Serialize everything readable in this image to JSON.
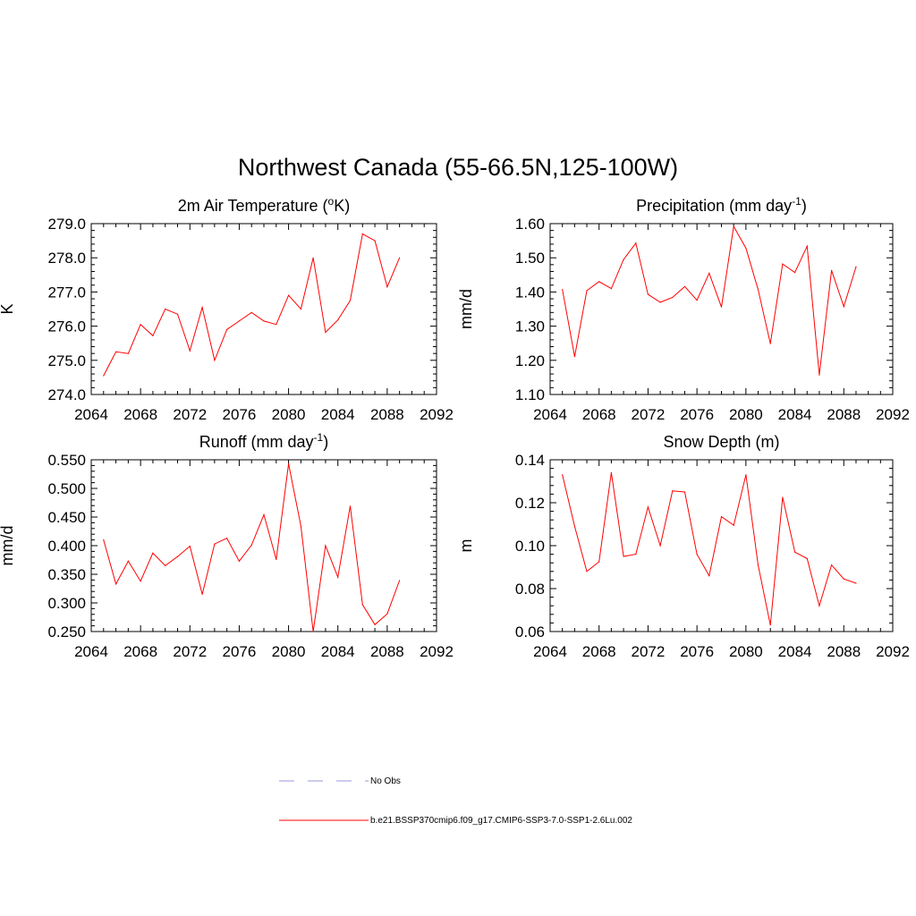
{
  "title": "Northwest Canada (55-66.5N,125-100W)",
  "colors": {
    "model": "#ff0000",
    "obs": "#9999dd",
    "axis": "#000000"
  },
  "legend": {
    "items": [
      {
        "label": "No Obs",
        "style": "dashed",
        "color": "#9999dd"
      },
      {
        "label": "b.e21.BSSP370cmip6.f09_g17.CMIP6-SSP3-7.0-SSP1-2.6Lu.002",
        "style": "solid",
        "color": "#ff0000"
      }
    ]
  },
  "chart_data": [
    {
      "type": "line",
      "title_main": "2m Air Temperature (",
      "title_sup": "o",
      "title_tail": "K)",
      "ylabel": "K",
      "xlim": [
        2064,
        2092
      ],
      "ylim": [
        274.0,
        279.0
      ],
      "xticks": [
        2064,
        2068,
        2072,
        2076,
        2080,
        2084,
        2088,
        2092
      ],
      "yticks": [
        "274.0",
        "275.0",
        "276.0",
        "277.0",
        "278.0",
        "279.0"
      ],
      "series": [
        {
          "x": [
            2065,
            2066,
            2067,
            2068,
            2069,
            2070,
            2071,
            2072,
            2073,
            2074,
            2075,
            2076,
            2077,
            2078,
            2079,
            2080,
            2081,
            2082,
            2083,
            2084,
            2085,
            2086,
            2087,
            2088,
            2089
          ],
          "values": [
            274.55,
            275.25,
            275.2,
            276.05,
            275.72,
            276.5,
            276.35,
            275.28,
            276.55,
            275.0,
            275.9,
            276.15,
            276.4,
            276.15,
            276.05,
            276.9,
            276.5,
            278.0,
            275.82,
            276.18,
            276.75,
            278.7,
            278.5,
            277.15,
            278.0
          ]
        }
      ]
    },
    {
      "type": "line",
      "title_main": "Precipitation (mm day",
      "title_sup": "-1",
      "title_tail": ")",
      "ylabel": "mm/d",
      "xlim": [
        2064,
        2092
      ],
      "ylim": [
        1.1,
        1.6
      ],
      "xticks": [
        2064,
        2068,
        2072,
        2076,
        2080,
        2084,
        2088,
        2092
      ],
      "yticks": [
        "1.10",
        "1.20",
        "1.30",
        "1.40",
        "1.50",
        "1.60"
      ],
      "series": [
        {
          "x": [
            2065,
            2066,
            2067,
            2068,
            2069,
            2070,
            2071,
            2072,
            2073,
            2074,
            2075,
            2076,
            2077,
            2078,
            2079,
            2080,
            2081,
            2082,
            2083,
            2084,
            2085,
            2086,
            2087,
            2088,
            2089
          ],
          "values": [
            1.407,
            1.211,
            1.404,
            1.43,
            1.41,
            1.495,
            1.543,
            1.393,
            1.37,
            1.384,
            1.416,
            1.376,
            1.455,
            1.356,
            1.592,
            1.528,
            1.407,
            1.249,
            1.482,
            1.457,
            1.534,
            1.157,
            1.463,
            1.357,
            1.474
          ]
        }
      ]
    },
    {
      "type": "line",
      "title_main": "Runoff (mm day",
      "title_sup": "-1",
      "title_tail": ")",
      "ylabel": "mm/d",
      "xlim": [
        2064,
        2092
      ],
      "ylim": [
        0.25,
        0.55
      ],
      "xticks": [
        2064,
        2068,
        2072,
        2076,
        2080,
        2084,
        2088,
        2092
      ],
      "yticks": [
        "0.250",
        "0.300",
        "0.350",
        "0.400",
        "0.450",
        "0.500",
        "0.550"
      ],
      "series": [
        {
          "x": [
            2065,
            2066,
            2067,
            2068,
            2069,
            2070,
            2071,
            2072,
            2073,
            2074,
            2075,
            2076,
            2077,
            2078,
            2079,
            2080,
            2081,
            2082,
            2083,
            2084,
            2085,
            2086,
            2087,
            2088,
            2089
          ],
          "values": [
            0.41,
            0.333,
            0.373,
            0.338,
            0.387,
            0.365,
            0.381,
            0.399,
            0.315,
            0.403,
            0.413,
            0.373,
            0.401,
            0.454,
            0.376,
            0.543,
            0.434,
            0.25,
            0.4,
            0.345,
            0.469,
            0.297,
            0.262,
            0.281,
            0.339
          ]
        }
      ]
    },
    {
      "type": "line",
      "title_main": "Snow Depth (m)",
      "title_sup": "",
      "title_tail": "",
      "ylabel": "m",
      "xlim": [
        2064,
        2092
      ],
      "ylim": [
        0.06,
        0.14
      ],
      "xticks": [
        2064,
        2068,
        2072,
        2076,
        2080,
        2084,
        2088,
        2092
      ],
      "yticks": [
        "0.06",
        "0.08",
        "0.10",
        "0.12",
        "0.14"
      ],
      "series": [
        {
          "x": [
            2065,
            2066,
            2067,
            2068,
            2069,
            2070,
            2071,
            2072,
            2073,
            2074,
            2075,
            2076,
            2077,
            2078,
            2079,
            2080,
            2081,
            2082,
            2083,
            2084,
            2085,
            2086,
            2087,
            2088,
            2089
          ],
          "values": [
            0.133,
            0.109,
            0.088,
            0.0925,
            0.134,
            0.095,
            0.096,
            0.118,
            0.1,
            0.1255,
            0.125,
            0.096,
            0.086,
            0.1135,
            0.1095,
            0.133,
            0.091,
            0.063,
            0.1225,
            0.097,
            0.094,
            0.072,
            0.091,
            0.0845,
            0.0825
          ]
        }
      ]
    }
  ]
}
